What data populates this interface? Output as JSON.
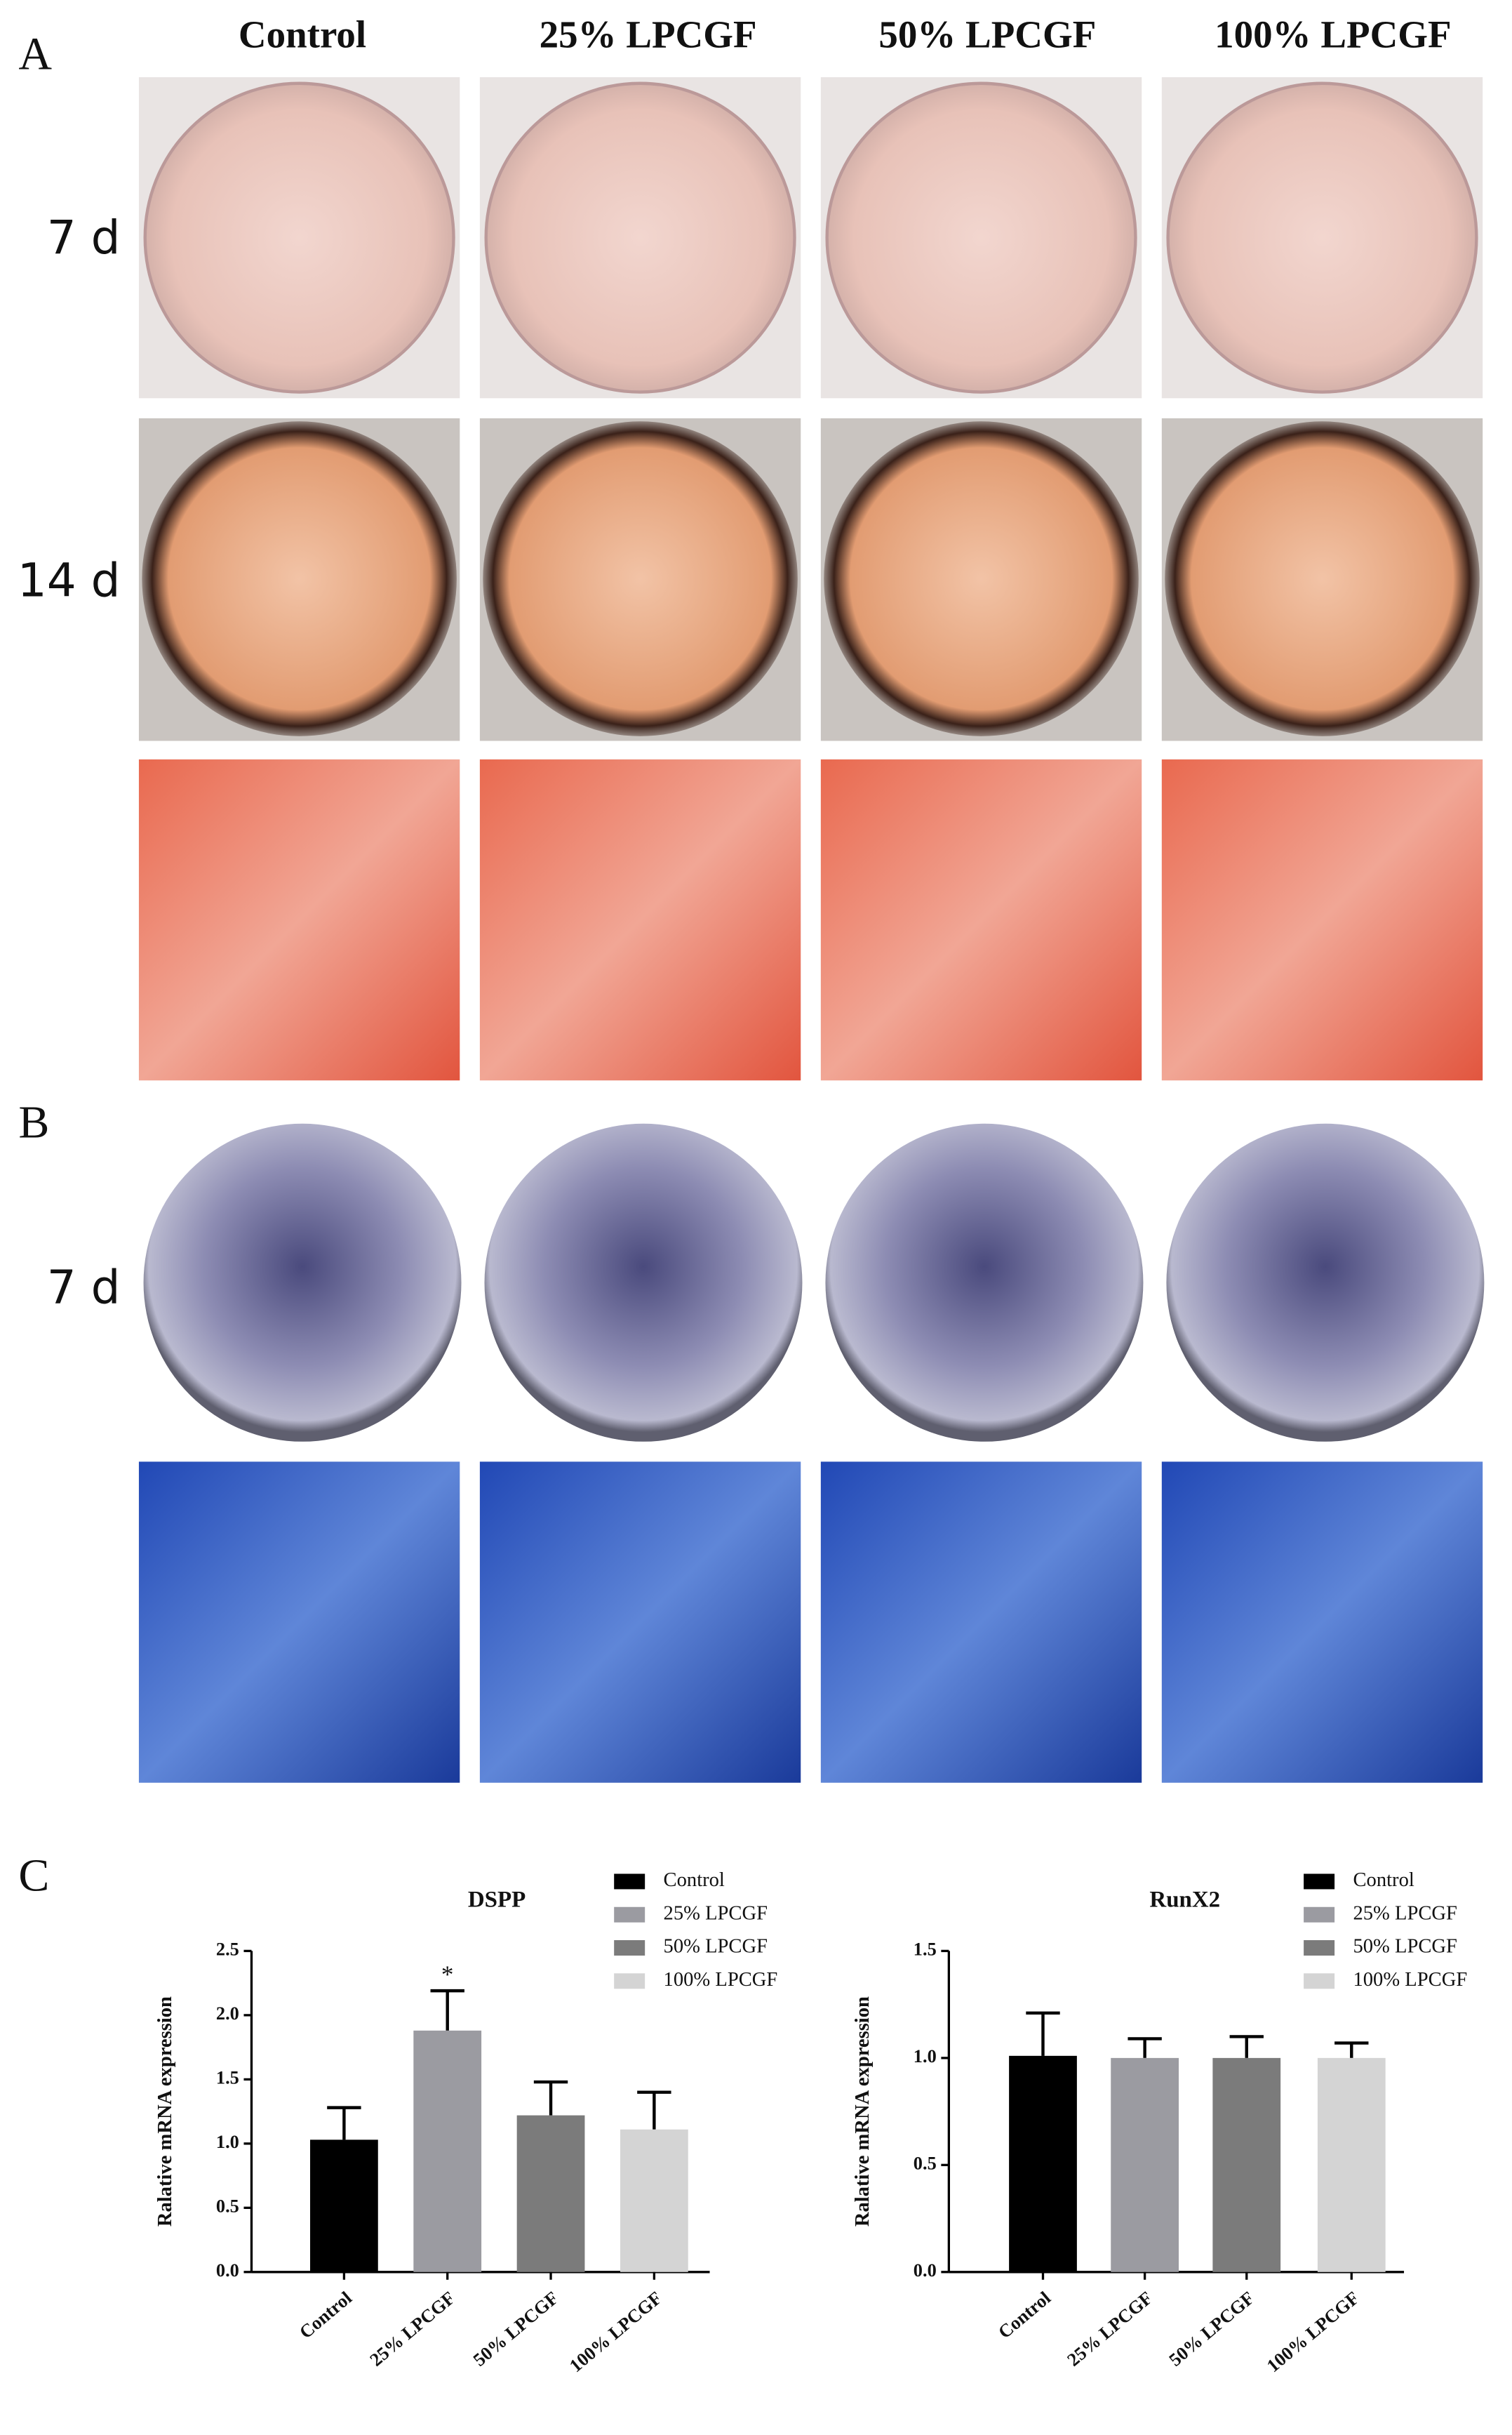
{
  "panels": {
    "a": {
      "label": "A",
      "columns": [
        "Control",
        "25% LPCGF",
        "50% LPCGF",
        "100% LPCGF"
      ],
      "rows": [
        "7 d",
        "14 d"
      ]
    },
    "b": {
      "label": "B",
      "rows": [
        "7 d"
      ]
    },
    "c": {
      "label": "C"
    }
  },
  "chart_data": [
    {
      "type": "bar",
      "title": "DSPP",
      "y_label": "Ralative mRNA expression",
      "categories": [
        "Control",
        "25% LPCGF",
        "50% LPCGF",
        "100% LPCGF"
      ],
      "values": [
        1.03,
        1.88,
        1.22,
        1.11
      ],
      "errors": [
        0.25,
        0.31,
        0.26,
        0.29
      ],
      "colors": [
        "#000000",
        "#9b9ba1",
        "#7b7b7b",
        "#d4d4d4"
      ],
      "annotations": [
        null,
        "*",
        null,
        null
      ],
      "ylim": [
        0,
        2.5
      ],
      "yticks": [
        {
          "value": 0,
          "label": "0.0"
        },
        0.5,
        {
          "value": 1,
          "label": "1.0"
        },
        1.5,
        {
          "value": 2,
          "label": "2.0"
        },
        2.5
      ]
    },
    {
      "type": "bar",
      "title": "RunX2",
      "y_label": "Ralative mRNA expression",
      "categories": [
        "Control",
        "25% LPCGF",
        "50% LPCGF",
        "100% LPCGF"
      ],
      "values": [
        1.01,
        1.0,
        1.0,
        1.0
      ],
      "errors": [
        0.2,
        0.09,
        0.1,
        0.07
      ],
      "colors": [
        "#000000",
        "#9b9ba1",
        "#7b7b7b",
        "#d4d4d4"
      ],
      "annotations": [
        null,
        null,
        null,
        null
      ],
      "ylim": [
        0,
        1.5
      ],
      "yticks": [
        {
          "value": 0,
          "label": "0.0"
        },
        0.5,
        {
          "value": 1,
          "label": "1.0"
        },
        1.5
      ]
    }
  ]
}
